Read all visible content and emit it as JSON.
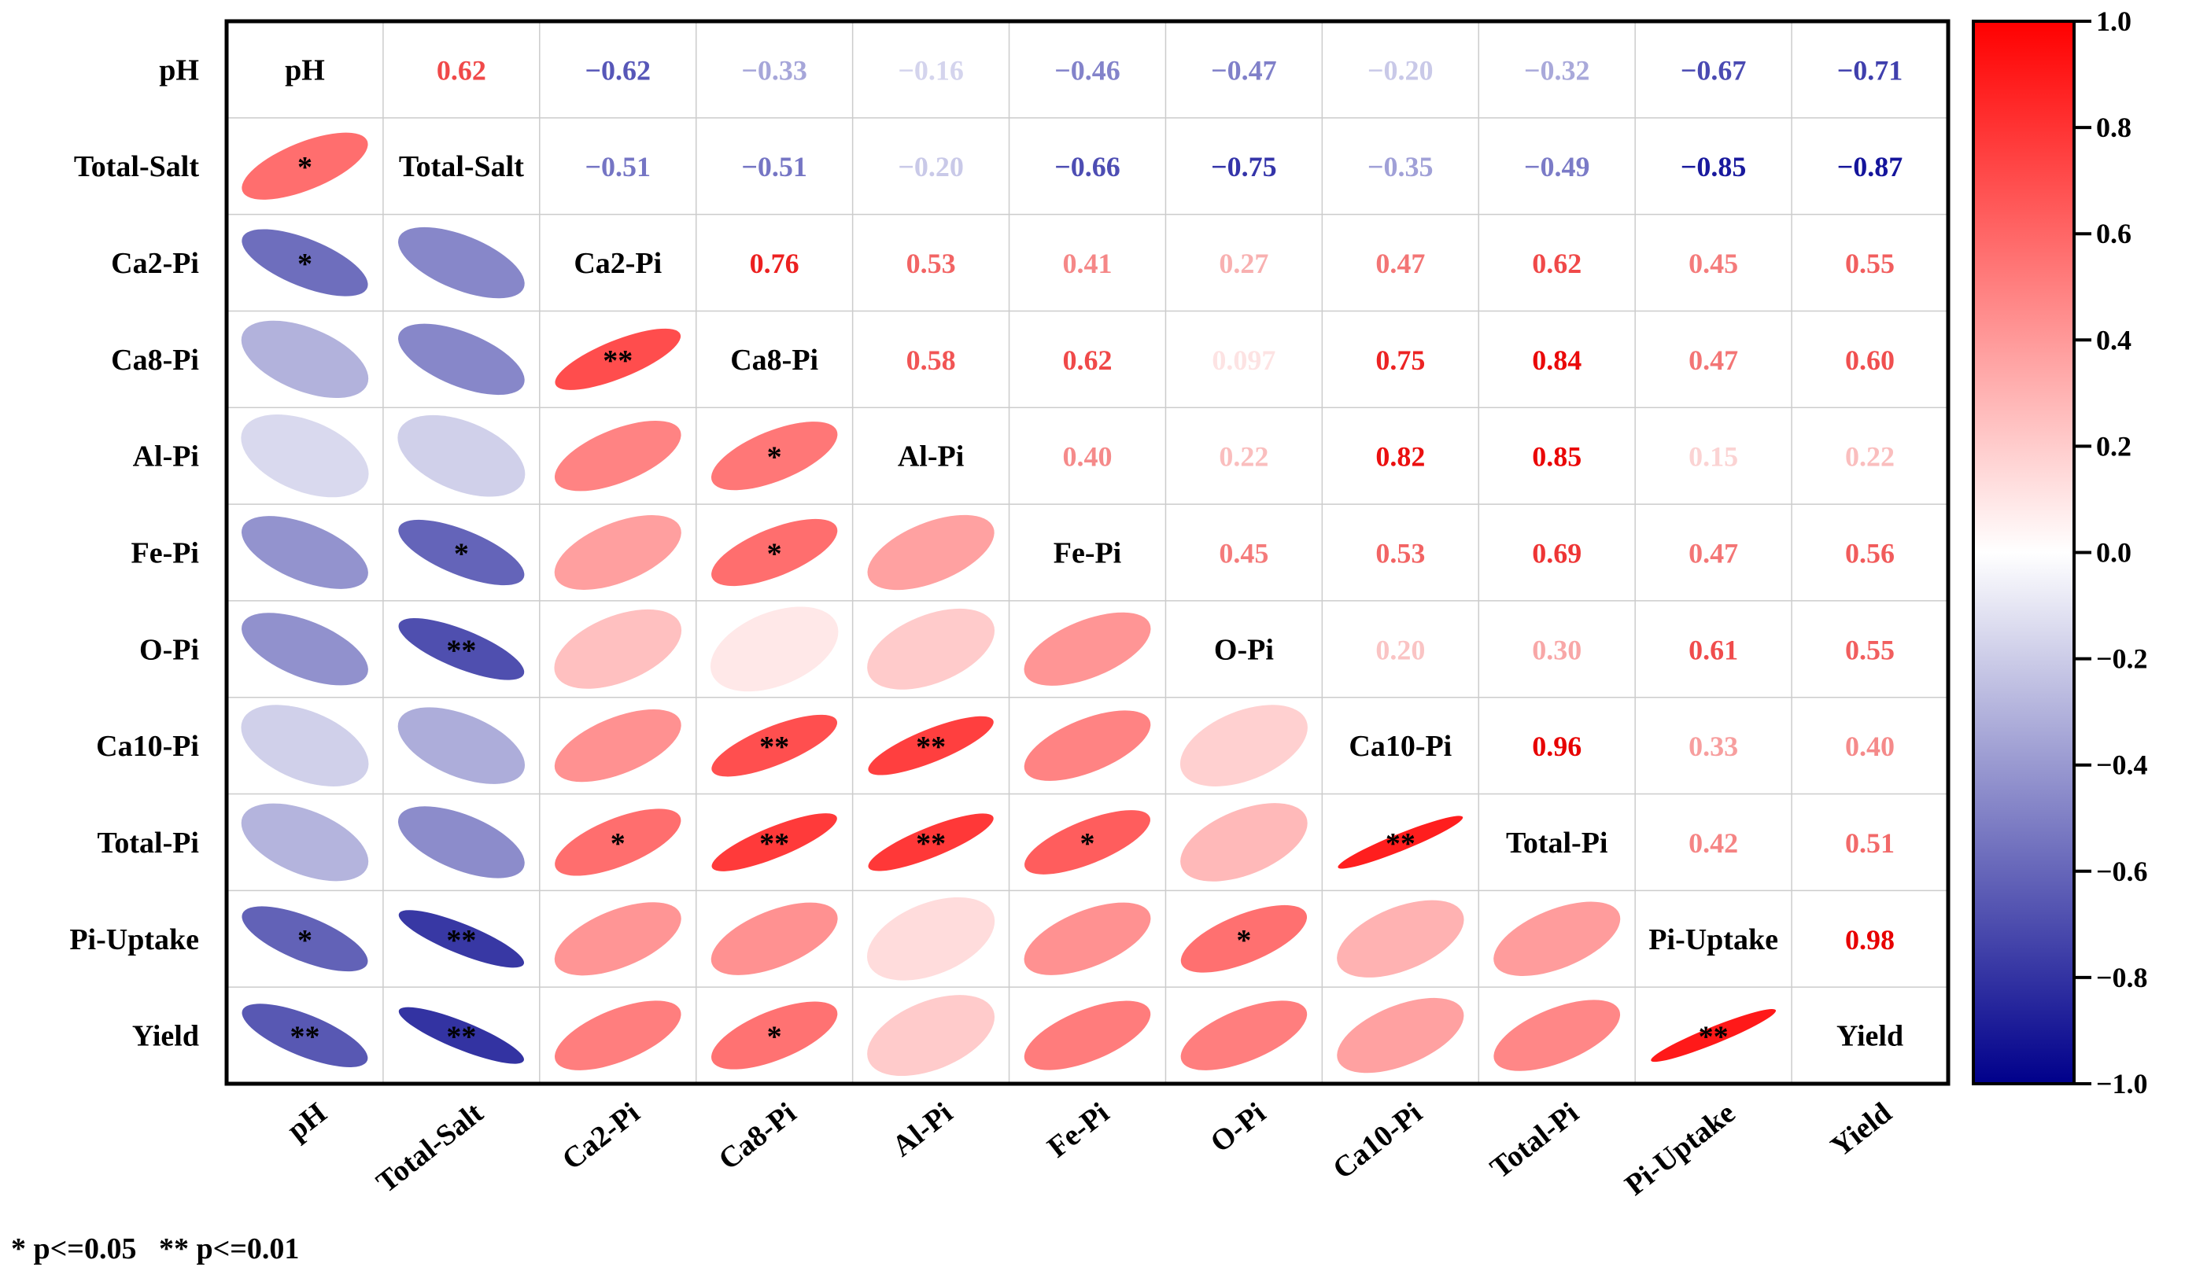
{
  "chart_data": {
    "type": "heatmap",
    "subtype": "correlation-matrix",
    "variables": [
      "pH",
      "Total-Salt",
      "Ca2-Pi",
      "Ca8-Pi",
      "Al-Pi",
      "Fe-Pi",
      "O-Pi",
      "Ca10-Pi",
      "Total-Pi",
      "Pi-Uptake",
      "Yield"
    ],
    "matrix": [
      [
        1,
        0.62,
        -0.62,
        -0.33,
        -0.16,
        -0.46,
        -0.47,
        -0.2,
        -0.32,
        -0.67,
        -0.71
      ],
      [
        0.62,
        1,
        -0.51,
        -0.51,
        -0.2,
        -0.66,
        -0.75,
        -0.35,
        -0.49,
        -0.85,
        -0.87
      ],
      [
        -0.62,
        -0.51,
        1,
        0.76,
        0.53,
        0.41,
        0.27,
        0.47,
        0.62,
        0.45,
        0.55
      ],
      [
        -0.33,
        -0.51,
        0.76,
        1,
        0.58,
        0.62,
        0.097,
        0.75,
        0.84,
        0.47,
        0.6
      ],
      [
        -0.16,
        -0.2,
        0.53,
        0.58,
        1,
        0.4,
        0.22,
        0.82,
        0.85,
        0.15,
        0.22
      ],
      [
        -0.46,
        -0.66,
        0.41,
        0.62,
        0.4,
        1,
        0.45,
        0.53,
        0.69,
        0.47,
        0.56
      ],
      [
        -0.47,
        -0.75,
        0.27,
        0.097,
        0.22,
        0.45,
        1,
        0.2,
        0.3,
        0.61,
        0.55
      ],
      [
        -0.2,
        -0.35,
        0.47,
        0.75,
        0.82,
        0.53,
        0.2,
        1,
        0.96,
        0.33,
        0.4
      ],
      [
        -0.32,
        -0.49,
        0.62,
        0.84,
        0.85,
        0.69,
        0.3,
        0.96,
        1,
        0.42,
        0.51
      ],
      [
        -0.67,
        -0.85,
        0.45,
        0.47,
        0.15,
        0.47,
        0.61,
        0.33,
        0.42,
        1,
        0.98
      ],
      [
        -0.71,
        -0.87,
        0.55,
        0.6,
        0.22,
        0.56,
        0.55,
        0.4,
        0.51,
        0.98,
        1
      ]
    ],
    "upper_labels": [
      [
        "",
        "0.62",
        "−0.62",
        "−0.33",
        "−0.16",
        "−0.46",
        "−0.47",
        "−0.20",
        "−0.32",
        "−0.67",
        "−0.71"
      ],
      [
        "",
        "",
        "−0.51",
        "−0.51",
        "−0.20",
        "−0.66",
        "−0.75",
        "−0.35",
        "−0.49",
        "−0.85",
        "−0.87"
      ],
      [
        "",
        "",
        "",
        "0.76",
        "0.53",
        "0.41",
        "0.27",
        "0.47",
        "0.62",
        "0.45",
        "0.55"
      ],
      [
        "",
        "",
        "",
        "",
        "0.58",
        "0.62",
        "0.097",
        "0.75",
        "0.84",
        "0.47",
        "0.60"
      ],
      [
        "",
        "",
        "",
        "",
        "",
        "0.40",
        "0.22",
        "0.82",
        "0.85",
        "0.15",
        "0.22"
      ],
      [
        "",
        "",
        "",
        "",
        "",
        "",
        "0.45",
        "0.53",
        "0.69",
        "0.47",
        "0.56"
      ],
      [
        "",
        "",
        "",
        "",
        "",
        "",
        "",
        "0.20",
        "0.30",
        "0.61",
        "0.55"
      ],
      [
        "",
        "",
        "",
        "",
        "",
        "",
        "",
        "",
        "0.96",
        "0.33",
        "0.40"
      ],
      [
        "",
        "",
        "",
        "",
        "",
        "",
        "",
        "",
        "",
        "0.42",
        "0.51"
      ],
      [
        "",
        "",
        "",
        "",
        "",
        "",
        "",
        "",
        "",
        "",
        "0.98"
      ],
      [
        "",
        "",
        "",
        "",
        "",
        "",
        "",
        "",
        "",
        "",
        ""
      ]
    ],
    "significance": [
      [
        "",
        "",
        "",
        "",
        "",
        "",
        "",
        "",
        "",
        "",
        ""
      ],
      [
        "*",
        "",
        "",
        "",
        "",
        "",
        "",
        "",
        "",
        "",
        ""
      ],
      [
        "*",
        "",
        "",
        "",
        "",
        "",
        "",
        "",
        "",
        "",
        ""
      ],
      [
        "",
        "",
        "**",
        "",
        "",
        "",
        "",
        "",
        "",
        "",
        ""
      ],
      [
        "",
        "",
        "",
        "*",
        "",
        "",
        "",
        "",
        "",
        "",
        ""
      ],
      [
        "",
        "*",
        "",
        "*",
        "",
        "",
        "",
        "",
        "",
        "",
        ""
      ],
      [
        "",
        "**",
        "",
        "",
        "",
        "",
        "",
        "",
        "",
        "",
        ""
      ],
      [
        "",
        "",
        "",
        "**",
        "**",
        "",
        "",
        "",
        "",
        "",
        ""
      ],
      [
        "",
        "",
        "*",
        "**",
        "**",
        "*",
        "",
        "**",
        "",
        "",
        ""
      ],
      [
        "*",
        "**",
        "",
        "",
        "",
        "",
        "*",
        "",
        "",
        "",
        ""
      ],
      [
        "**",
        "**",
        "",
        "*",
        "",
        "",
        "",
        "",
        "",
        "**",
        ""
      ]
    ],
    "colorbar": {
      "range": [
        -1.0,
        1.0
      ],
      "ticks": [
        1.0,
        0.8,
        0.6,
        0.4,
        0.2,
        0.0,
        -0.2,
        -0.4,
        -0.6,
        -0.8,
        -1.0
      ],
      "tick_labels": [
        "1.0",
        "0.8",
        "0.6",
        "0.4",
        "0.2",
        "0.0",
        "−0.2",
        "−0.4",
        "−0.6",
        "−0.8",
        "−1.0"
      ],
      "colors": {
        "high": "#ff0000",
        "mid": "#ffffff",
        "low": "#00008b"
      }
    },
    "legend_note": "* p<=0.05   ** p<=0.01",
    "lower_triangle": "ellipses",
    "upper_triangle": "values"
  }
}
